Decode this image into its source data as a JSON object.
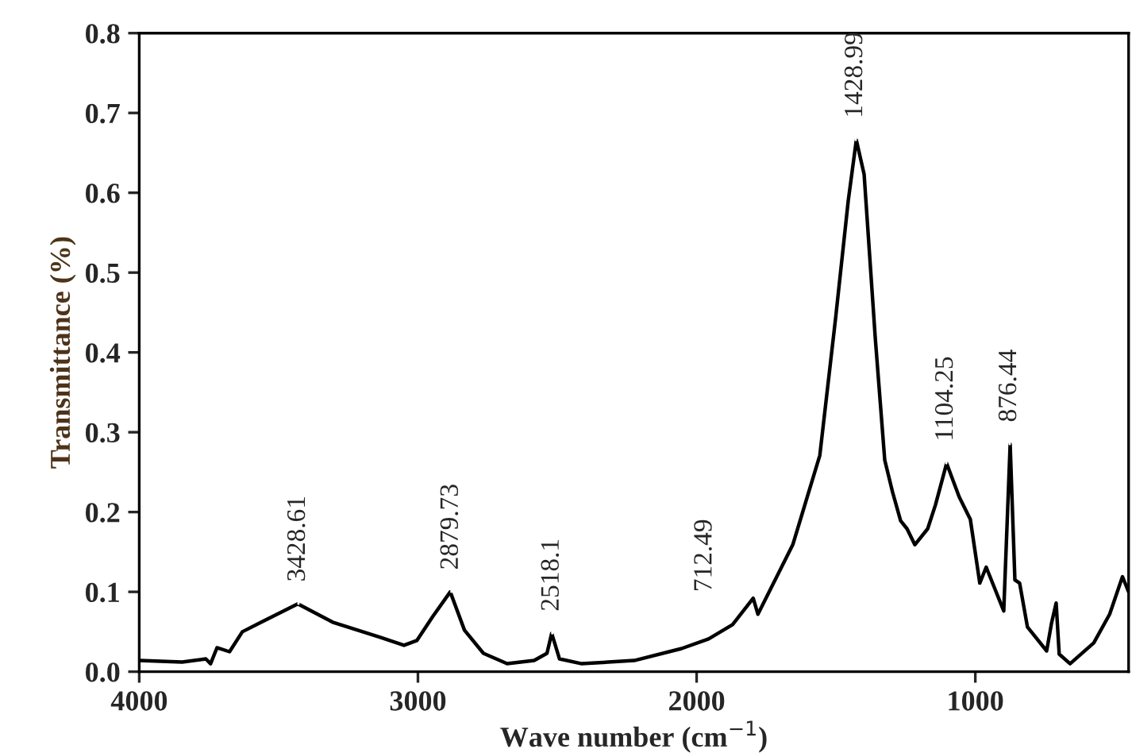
{
  "chart_data": {
    "type": "line",
    "xlabel": "Wave number (cm$^{−1}$)",
    "ylabel": "Transmittance (%)",
    "xlim": [
      4000,
      450
    ],
    "xticks": [
      4000,
      3000,
      2000,
      1000
    ],
    "ylim": [
      0.0,
      0.8
    ],
    "yticks": [
      {
        "value": 0.0,
        "label": "0.0"
      },
      0.1,
      0.2,
      0.3,
      0.4,
      0.5,
      0.6,
      0.7,
      0.8
    ],
    "grid": false,
    "legend": false,
    "marker": "none",
    "line_style": "solid",
    "series": [
      {
        "color": "#000000",
        "x": [
          4000,
          3846,
          3761,
          3744,
          3721,
          3676,
          3630,
          3562,
          3431,
          3306,
          3135,
          3050,
          3004,
          2947,
          2884,
          2833,
          2765,
          2680,
          2583,
          2537,
          2520,
          2492,
          2412,
          2224,
          2054,
          1957,
          1871,
          1797,
          1780,
          1655,
          1558,
          1501,
          1456,
          1427,
          1399,
          1359,
          1325,
          1297,
          1268,
          1245,
          1217,
          1171,
          1143,
          1103,
          1058,
          1018,
          984,
          961,
          898,
          875,
          858,
          841,
          813,
          744,
          727,
          710,
          699,
          660,
          575,
          518,
          472,
          450
        ],
        "values": [
          0.014,
          0.012,
          0.016,
          0.01,
          0.03,
          0.025,
          0.05,
          0.062,
          0.085,
          0.062,
          0.043,
          0.033,
          0.039,
          0.069,
          0.1,
          0.052,
          0.023,
          0.01,
          0.014,
          0.023,
          0.048,
          0.016,
          0.01,
          0.014,
          0.029,
          0.041,
          0.059,
          0.092,
          0.072,
          0.159,
          0.271,
          0.444,
          0.59,
          0.666,
          0.623,
          0.418,
          0.265,
          0.225,
          0.189,
          0.179,
          0.159,
          0.179,
          0.209,
          0.261,
          0.219,
          0.191,
          0.111,
          0.131,
          0.076,
          0.285,
          0.115,
          0.111,
          0.056,
          0.026,
          0.06,
          0.086,
          0.022,
          0.01,
          0.036,
          0.072,
          0.119,
          0.1
        ]
      }
    ],
    "annotations": [
      {
        "text": "3428.61",
        "x": 3428.61,
        "y": 0.085
      },
      {
        "text": "2879.73",
        "x": 2879.73,
        "y": 0.1
      },
      {
        "text": "2518.1",
        "x": 2518.1,
        "y": 0.048
      },
      "712.49",
      {
        "text": "1428.99",
        "x": 1428.99,
        "y": 0.666
      },
      {
        "text": "1104.25",
        "x": 1104.25,
        "y": 0.261
      },
      {
        "text": "876.44",
        "x": 876.44,
        "y": 0.285
      }
    ]
  }
}
